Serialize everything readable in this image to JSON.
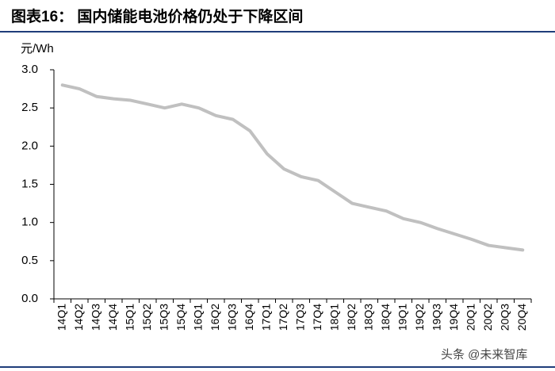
{
  "chart_data": {
    "type": "line",
    "title": "图表16：  国内储能电池价格仍处于下降区间",
    "y_label": "元/Wh",
    "categories": [
      "14Q1",
      "14Q2",
      "14Q3",
      "14Q4",
      "15Q1",
      "15Q2",
      "15Q3",
      "15Q4",
      "16Q1",
      "16Q2",
      "16Q3",
      "16Q4",
      "17Q1",
      "17Q2",
      "17Q3",
      "17Q4",
      "18Q1",
      "18Q2",
      "18Q3",
      "18Q4",
      "19Q1",
      "19Q2",
      "19Q3",
      "19Q4",
      "20Q1",
      "20Q2",
      "20Q3",
      "20Q4"
    ],
    "values": [
      2.8,
      2.75,
      2.65,
      2.62,
      2.6,
      2.55,
      2.5,
      2.55,
      2.5,
      2.4,
      2.35,
      2.2,
      1.9,
      1.7,
      1.6,
      1.55,
      1.4,
      1.25,
      1.2,
      1.15,
      1.05,
      1.0,
      0.92,
      0.85,
      0.78,
      0.7,
      0.67,
      0.64
    ],
    "color": "#c0c0c0",
    "ylim": [
      0,
      3
    ],
    "yticks": [
      {
        "value": 0,
        "label": "0.0"
      },
      {
        "value": 0.5,
        "label": "0.5"
      },
      {
        "value": 1,
        "label": "1.0"
      },
      {
        "value": 1.5,
        "label": "1.5"
      },
      {
        "value": 2,
        "label": "2.0"
      },
      {
        "value": 2.5,
        "label": "2.5"
      },
      {
        "value": 3,
        "label": "3.0"
      }
    ],
    "grid": false,
    "watermark": "头条 @未来智库"
  }
}
